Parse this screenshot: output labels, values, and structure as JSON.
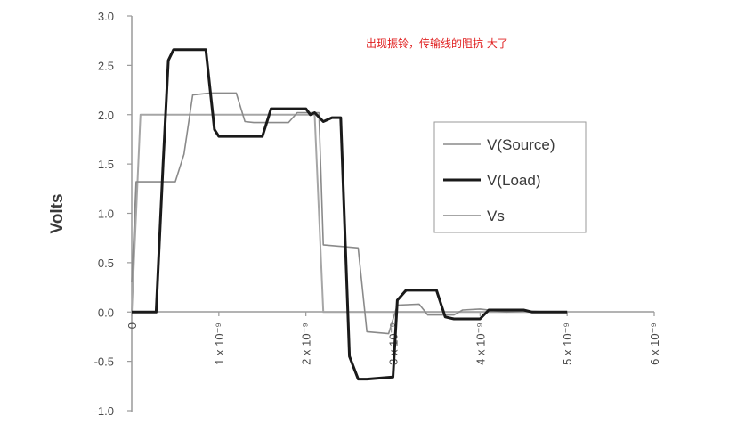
{
  "chart_data": {
    "type": "line",
    "ylabel": "Volts",
    "xlabel": "",
    "ylim": [
      -1.0,
      3.0
    ],
    "xlim": [
      0,
      6e-09
    ],
    "y_ticks": [
      "3.0",
      "2.5",
      "2.0",
      "1.5",
      "1.0",
      "0.5",
      "0.0",
      "-0.5",
      "-1.0"
    ],
    "x_ticks": [
      "0",
      "1 x 10⁻⁹",
      "2 x 10⁻⁹",
      "3 x 10⁻⁹",
      "4 x 10⁻⁹",
      "5 x 10⁻⁹",
      "6 x 10⁻⁹"
    ],
    "annotation": "出现振铃，传输线的阻抗 大了",
    "legend_position": "right",
    "grid": false,
    "series": [
      {
        "name": "V(Source)",
        "color": "#8a8a8a",
        "x": [
          0,
          5e-11,
          5e-10,
          6e-10,
          7e-10,
          9e-10,
          1.2e-09,
          1.3e-09,
          1.4e-09,
          1.8e-09,
          1.9e-09,
          2.15e-09,
          2.2e-09,
          2.6e-09,
          2.7e-09,
          2.95e-09,
          3.05e-09,
          3.3e-09,
          3.4e-09,
          3.7e-09,
          3.8e-09,
          4e-09,
          4.3e-09,
          4.5e-09,
          4.8e-09,
          5e-09
        ],
        "y": [
          0.3,
          1.32,
          1.32,
          1.6,
          2.2,
          2.22,
          2.22,
          1.93,
          1.92,
          1.92,
          2.02,
          2.02,
          0.68,
          0.65,
          -0.2,
          -0.22,
          0.07,
          0.08,
          -0.03,
          -0.03,
          0.02,
          0.03,
          0.0,
          0.01,
          0.0,
          0.0
        ]
      },
      {
        "name": "V(Load)",
        "color": "#1a1a1a",
        "x": [
          0,
          2.8e-10,
          3.6e-10,
          4.2e-10,
          4.8e-10,
          8.5e-10,
          9.5e-10,
          1e-09,
          1.5e-09,
          1.6e-09,
          2e-09,
          2.05e-09,
          2.1e-09,
          2.2e-09,
          2.3e-09,
          2.4e-09,
          2.5e-09,
          2.6e-09,
          2.7e-09,
          3e-09,
          3.05e-09,
          3.15e-09,
          3.5e-09,
          3.6e-09,
          3.7e-09,
          4e-09,
          4.1e-09,
          4.5e-09,
          4.6e-09,
          5e-09
        ],
        "y": [
          0.0,
          0.0,
          1.5,
          2.55,
          2.66,
          2.66,
          1.85,
          1.78,
          1.78,
          2.06,
          2.06,
          2.0,
          2.02,
          1.93,
          1.97,
          1.97,
          -0.45,
          -0.68,
          -0.68,
          -0.66,
          0.12,
          0.22,
          0.22,
          -0.05,
          -0.07,
          -0.07,
          0.02,
          0.02,
          0.0,
          0.0
        ]
      },
      {
        "name": "Vs",
        "color": "#a6a6a6",
        "x": [
          0,
          1e-10,
          2.1e-09,
          2.2e-09,
          5e-09
        ],
        "y": [
          0.0,
          2.0,
          2.0,
          0.0,
          0.0
        ]
      }
    ]
  }
}
